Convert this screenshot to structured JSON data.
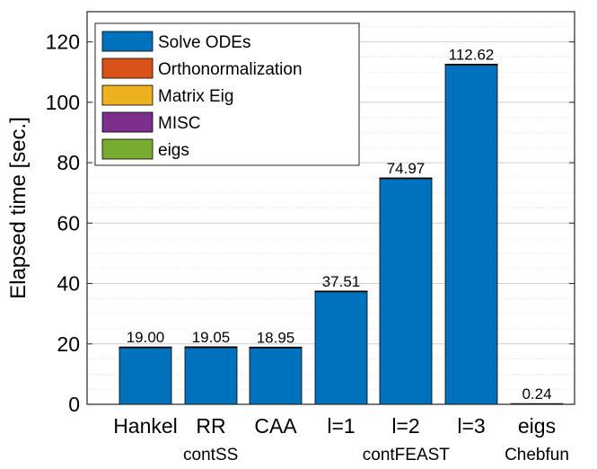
{
  "chart_data": {
    "type": "bar",
    "stacked": true,
    "categories": [
      "Hankel",
      "RR",
      "CAA",
      "l=1",
      "l=2",
      "l=3",
      "eigs"
    ],
    "groups": [
      {
        "label": "contSS",
        "categories": [
          "Hankel",
          "RR",
          "CAA"
        ]
      },
      {
        "label": "contFEAST",
        "categories": [
          "l=1",
          "l=2",
          "l=3"
        ]
      },
      {
        "label": "Chebfun",
        "categories": [
          "eigs"
        ]
      }
    ],
    "series": [
      {
        "name": "Solve ODEs",
        "color": "#0072BD",
        "values": [
          18.8,
          18.85,
          18.75,
          37.35,
          74.8,
          112.45,
          0
        ]
      },
      {
        "name": "Orthonormalization",
        "color": "#D95319",
        "values": [
          0.1,
          0.1,
          0.1,
          0.08,
          0.08,
          0.08,
          0
        ]
      },
      {
        "name": "Matrix Eig",
        "color": "#EDB120",
        "values": [
          0.02,
          0.02,
          0.02,
          0.02,
          0.02,
          0.02,
          0
        ]
      },
      {
        "name": "MISC",
        "color": "#7E2F8E",
        "values": [
          0.08,
          0.08,
          0.08,
          0.06,
          0.07,
          0.07,
          0
        ]
      },
      {
        "name": "eigs",
        "color": "#77AC30",
        "values": [
          0,
          0,
          0,
          0,
          0,
          0,
          0.24
        ]
      }
    ],
    "totals": [
      19.0,
      19.05,
      18.95,
      37.51,
      74.97,
      112.62,
      0.24
    ],
    "data_labels": [
      "19.00",
      "19.05",
      "18.95",
      "37.51",
      "74.97",
      "112.62",
      "0.24"
    ],
    "title": "",
    "xlabel": "",
    "ylabel": "Elapsed time [sec.]",
    "ylim": [
      0,
      130
    ],
    "yticks": [
      0,
      20,
      40,
      60,
      80,
      100,
      120
    ],
    "grid": true,
    "minor_grid": true,
    "legend_position": "top-left"
  }
}
